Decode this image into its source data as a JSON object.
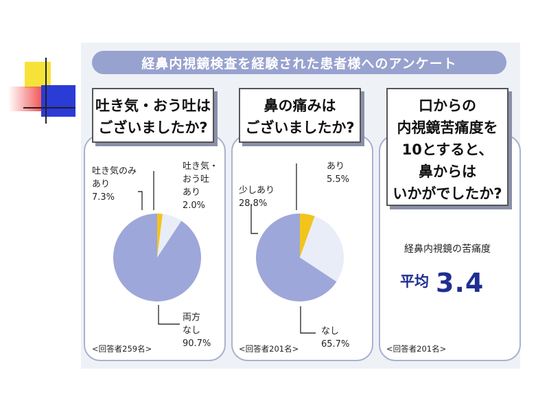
{
  "colors": {
    "banner": "#98a2cf",
    "none": "#9ea7d9",
    "mid": "#e8edf7",
    "yes": "#f2c41c",
    "accent_text": "#1f2f8f"
  },
  "banner": {
    "title": "経鼻内視鏡検査を経験された患者様へのアンケート"
  },
  "panel1": {
    "question_lines": [
      "吐き気・おう吐は",
      "ございましたか?"
    ],
    "label_mid": "吐き気のみ\nあり\n7.3%",
    "label_yes": "吐き気・\nおう吐\nあり\n2.0%",
    "label_none": "両方\nなし\n90.7%",
    "respondents": "<回答者259名>"
  },
  "panel2": {
    "question_lines": [
      "鼻の痛みは",
      "ございましたか?"
    ],
    "label_mid": "少しあり\n28.8%",
    "label_yes": "あり\n5.5%",
    "label_none": "なし\n65.7%",
    "respondents": "<回答者201名>"
  },
  "panel3": {
    "question_lines": [
      "口からの",
      "内視鏡苦痛度を",
      "10とすると、",
      "鼻からは",
      "いかがでしたか?"
    ],
    "pain_title": "経鼻内視鏡の苦痛度",
    "avg_label": "平均",
    "avg_value": "3.4",
    "respondents": "<回答者201名>"
  },
  "chart_data": [
    {
      "type": "pie",
      "title": "吐き気・おう吐はございましたか?",
      "categories": [
        "吐き気・おう吐あり",
        "吐き気のみあり",
        "両方なし"
      ],
      "values": [
        2.0,
        7.3,
        90.7
      ],
      "colors": [
        "#f2c41c",
        "#e8edf7",
        "#9ea7d9"
      ]
    },
    {
      "type": "pie",
      "title": "鼻の痛みはございましたか?",
      "categories": [
        "あり",
        "少しあり",
        "なし"
      ],
      "values": [
        5.5,
        28.8,
        65.7
      ],
      "colors": [
        "#f2c41c",
        "#e8edf7",
        "#9ea7d9"
      ]
    }
  ]
}
